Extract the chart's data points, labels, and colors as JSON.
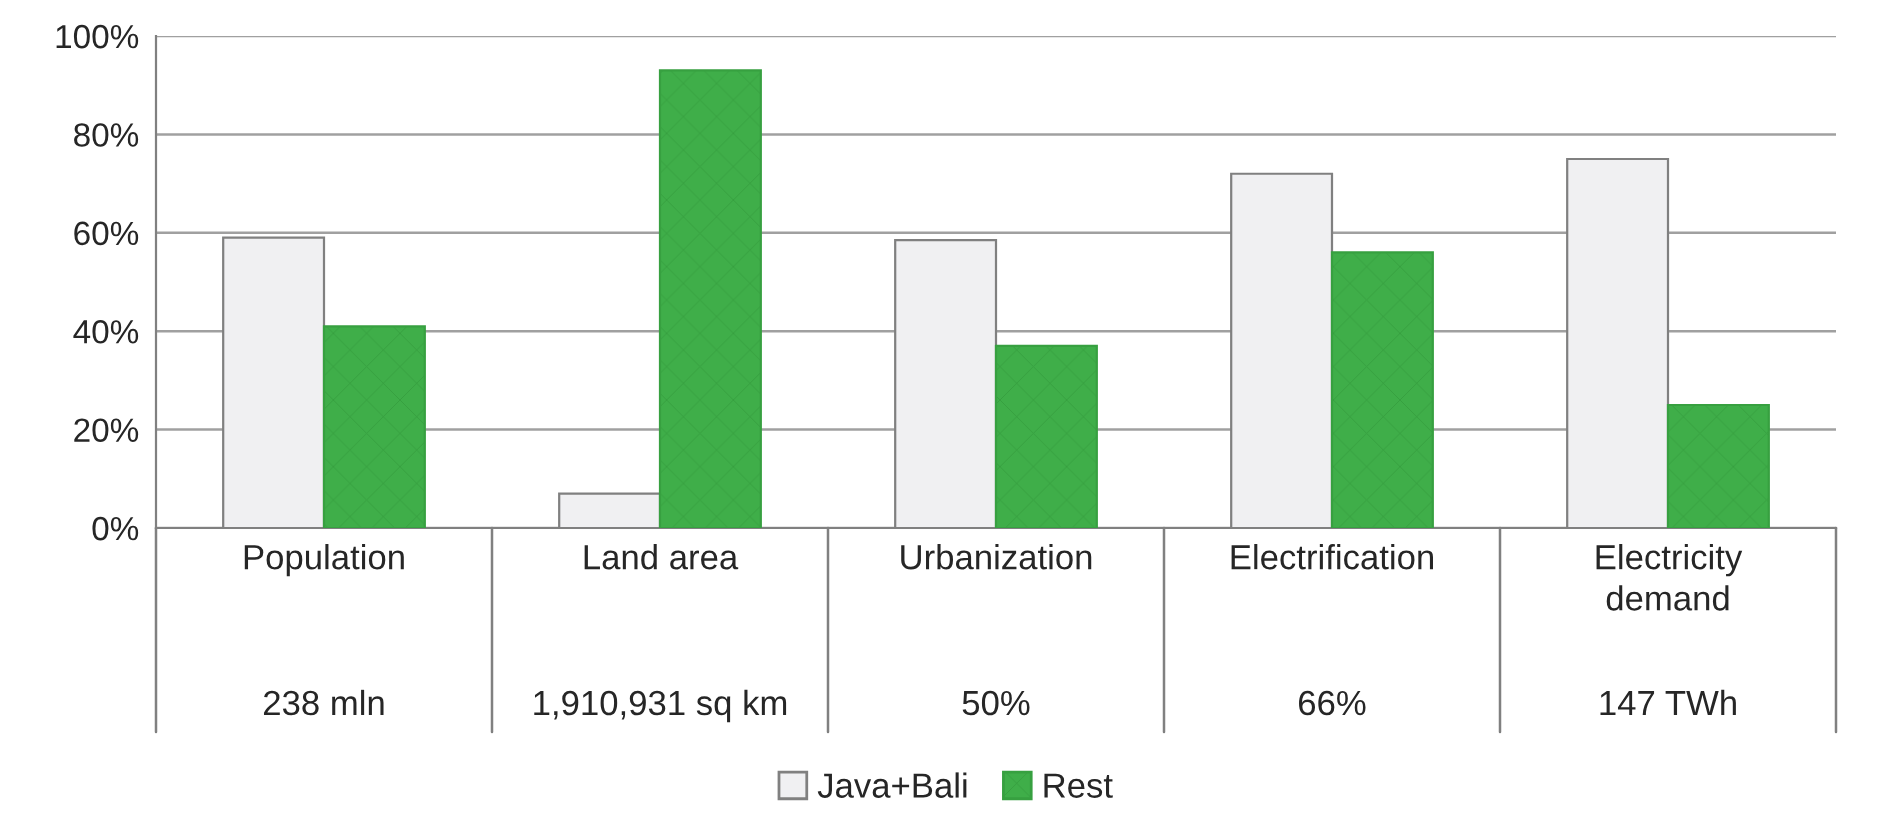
{
  "chart_data": {
    "type": "bar",
    "categories": [
      "Population",
      "Land area",
      "Urbanization",
      "Electrification",
      "Electricity\ndemand"
    ],
    "series": [
      {
        "name": "Java+Bali",
        "color": "#f0f0f2",
        "values": [
          59,
          7,
          58.5,
          72,
          75
        ]
      },
      {
        "name": "Rest",
        "color": "#3fae49",
        "values": [
          41,
          93,
          37,
          56,
          25
        ]
      }
    ],
    "annotations": [
      "238 mln",
      "1,910,931 sq km",
      "50%",
      "66%",
      "147 TWh"
    ],
    "ylim": [
      0,
      100
    ],
    "yticks": [
      {
        "value": 0,
        "label": "0%"
      },
      {
        "value": 20,
        "label": "20%"
      },
      {
        "value": 40,
        "label": "40%"
      },
      {
        "value": 60,
        "label": "60%"
      },
      {
        "value": 80,
        "label": "80%"
      },
      {
        "value": 100,
        "label": "100%"
      }
    ],
    "grid": "y",
    "legend": "bottom"
  }
}
